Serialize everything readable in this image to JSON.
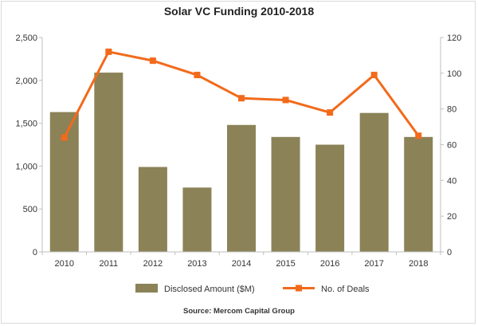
{
  "chart_data": {
    "type": "bar+line",
    "title": "Solar VC Funding 2010-2018",
    "source": "Source: Mercom Capital Group",
    "categories": [
      "2010",
      "2011",
      "2012",
      "2013",
      "2014",
      "2015",
      "2016",
      "2017",
      "2018"
    ],
    "series": [
      {
        "name": "Disclosed Amount ($M)",
        "type": "bar",
        "axis": "left",
        "color": "#8b8257",
        "values": [
          1630,
          2090,
          990,
          750,
          1480,
          1340,
          1250,
          1620,
          1340
        ]
      },
      {
        "name": "No. of Deals",
        "type": "line",
        "axis": "right",
        "color": "#f26a1b",
        "values": [
          64,
          112,
          107,
          99,
          86,
          85,
          78,
          99,
          65
        ]
      }
    ],
    "y_left": {
      "min": 0,
      "max": 2500,
      "ticks": [
        0,
        500,
        1000,
        1500,
        2000,
        2500
      ],
      "tick_labels": [
        "0",
        "500",
        "1,000",
        "1,500",
        "2,000",
        "2,500"
      ]
    },
    "y_right": {
      "min": 0,
      "max": 120,
      "ticks": [
        0,
        20,
        40,
        60,
        80,
        100,
        120
      ],
      "tick_labels": [
        "0",
        "20",
        "40",
        "60",
        "80",
        "100",
        "120"
      ]
    },
    "grid": false,
    "legend": "bottom"
  }
}
